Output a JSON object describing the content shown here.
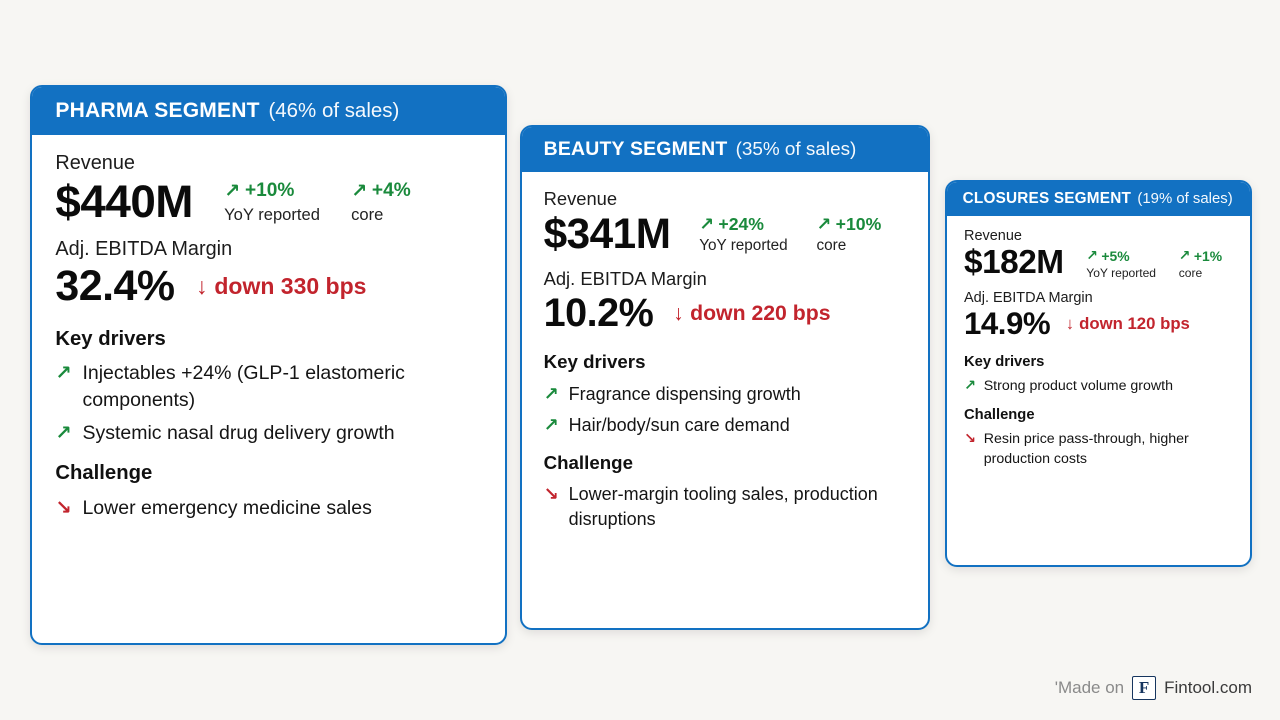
{
  "colors": {
    "accent_blue": "#1271c2",
    "green": "#1a8a3c",
    "red": "#c2242d",
    "background": "#f7f6f3"
  },
  "cards": [
    {
      "title": "PHARMA SEGMENT",
      "subtitle": "(46% of sales)",
      "revenue_label": "Revenue",
      "revenue_value": "$440M",
      "yoy_value": "+10%",
      "yoy_label": "YoY reported",
      "core_value": "+4%",
      "core_label": "core",
      "margin_label": "Adj. EBITDA Margin",
      "margin_value": "32.4%",
      "margin_change": "down 330 bps",
      "drivers_label": "Key drivers",
      "drivers": [
        "Injectables +24% (GLP-1 elastomeric components)",
        "Systemic nasal drug delivery growth"
      ],
      "challenge_label": "Challenge",
      "challenges": [
        "Lower emergency medicine sales"
      ]
    },
    {
      "title": "BEAUTY SEGMENT",
      "subtitle": "(35% of sales)",
      "revenue_label": "Revenue",
      "revenue_value": "$341M",
      "yoy_value": "+24%",
      "yoy_label": "YoY reported",
      "core_value": "+10%",
      "core_label": "core",
      "margin_label": "Adj. EBITDA Margin",
      "margin_value": "10.2%",
      "margin_change": "down 220 bps",
      "drivers_label": "Key drivers",
      "drivers": [
        "Fragrance dispensing growth",
        "Hair/body/sun care demand"
      ],
      "challenge_label": "Challenge",
      "challenges": [
        "Lower-margin tooling sales, production disruptions"
      ]
    },
    {
      "title": "CLOSURES SEGMENT",
      "subtitle": "(19% of sales)",
      "revenue_label": "Revenue",
      "revenue_value": "$182M",
      "yoy_value": "+5%",
      "yoy_label": "YoY reported",
      "core_value": "+1%",
      "core_label": "core",
      "margin_label": "Adj. EBITDA Margin",
      "margin_value": "14.9%",
      "margin_change": "down 120 bps",
      "drivers_label": "Key drivers",
      "drivers": [
        "Strong product volume growth"
      ],
      "challenge_label": "Challenge",
      "challenges": [
        "Resin price pass-through, higher production costs"
      ]
    }
  ],
  "icons": {
    "trend_up": "↗",
    "trend_down": "↘",
    "arrow_down": "↓"
  },
  "footer": {
    "made_on": "'Made on",
    "logo_letter": "F",
    "brand": "Fintool.com"
  }
}
